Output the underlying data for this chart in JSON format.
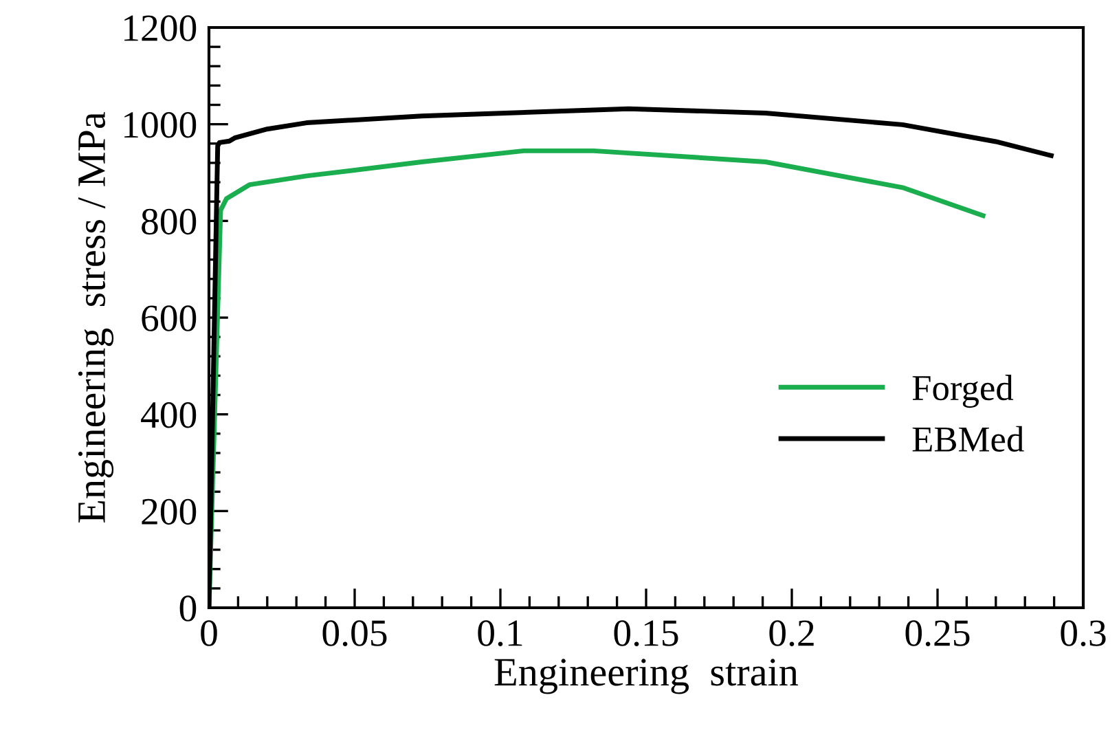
{
  "chart_data": {
    "type": "line",
    "xlabel": "Engineering  strain",
    "ylabel": "Engineering  stress / MPa",
    "xlim": [
      0,
      0.3
    ],
    "xticks": [
      0,
      {
        "value": 0.01,
        "label": null
      },
      {
        "value": 0.02,
        "label": null
      },
      {
        "value": 0.03,
        "label": null
      },
      {
        "value": 0.04,
        "label": null
      },
      0.05,
      {
        "value": 0.06,
        "label": null
      },
      {
        "value": 0.07,
        "label": null
      },
      {
        "value": 0.08,
        "label": null
      },
      {
        "value": 0.09,
        "label": null
      },
      0.1,
      {
        "value": 0.11,
        "label": null
      },
      {
        "value": 0.12,
        "label": null
      },
      {
        "value": 0.13,
        "label": null
      },
      {
        "value": 0.14,
        "label": null
      },
      0.15,
      {
        "value": 0.16,
        "label": null
      },
      {
        "value": 0.17,
        "label": null
      },
      {
        "value": 0.18,
        "label": null
      },
      {
        "value": 0.19,
        "label": null
      },
      0.2,
      {
        "value": 0.21,
        "label": null
      },
      {
        "value": 0.22,
        "label": null
      },
      {
        "value": 0.23,
        "label": null
      },
      {
        "value": 0.24,
        "label": null
      },
      0.25,
      {
        "value": 0.26,
        "label": null
      },
      {
        "value": 0.27,
        "label": null
      },
      {
        "value": 0.28,
        "label": null
      },
      {
        "value": 0.29,
        "label": null
      },
      0.3
    ],
    "ylim": [
      0,
      1200
    ],
    "yticks": [
      0,
      {
        "value": 40,
        "label": null
      },
      {
        "value": 80,
        "label": null
      },
      {
        "value": 120,
        "label": null
      },
      {
        "value": 160,
        "label": null
      },
      200,
      {
        "value": 240,
        "label": null
      },
      {
        "value": 280,
        "label": null
      },
      {
        "value": 320,
        "label": null
      },
      {
        "value": 360,
        "label": null
      },
      400,
      {
        "value": 440,
        "label": null
      },
      {
        "value": 480,
        "label": null
      },
      {
        "value": 520,
        "label": null
      },
      {
        "value": 560,
        "label": null
      },
      600,
      {
        "value": 640,
        "label": null
      },
      {
        "value": 680,
        "label": null
      },
      {
        "value": 720,
        "label": null
      },
      {
        "value": 760,
        "label": null
      },
      800,
      {
        "value": 840,
        "label": null
      },
      {
        "value": 880,
        "label": null
      },
      {
        "value": 920,
        "label": null
      },
      {
        "value": 960,
        "label": null
      },
      1000,
      {
        "value": 1040,
        "label": null
      },
      {
        "value": 1080,
        "label": null
      },
      {
        "value": 1120,
        "label": null
      },
      {
        "value": 1160,
        "label": null
      },
      1200
    ],
    "grid": false,
    "legend": "bottom right",
    "marker": "none",
    "line_style": "solid",
    "series": [
      {
        "name": "Forged",
        "color": "#1aae4f",
        "x": [
          0,
          0.004,
          0.006,
          0.014,
          0.0335,
          0.073,
          0.108,
          0.132,
          0.191,
          0.238,
          0.2656
        ],
        "values": [
          0,
          822,
          846,
          875,
          893,
          922,
          945,
          945,
          922,
          869,
          811
        ]
      },
      {
        "name": "EBMed",
        "color": "#000000",
        "x": [
          0,
          0.003,
          0.0036,
          0.007,
          0.009,
          0.02,
          0.0335,
          0.073,
          0.144,
          0.191,
          0.238,
          0.27,
          0.289
        ],
        "values": [
          0,
          955,
          962,
          965,
          972,
          990,
          1003,
          1017,
          1032,
          1023,
          999,
          964,
          935
        ]
      }
    ]
  }
}
